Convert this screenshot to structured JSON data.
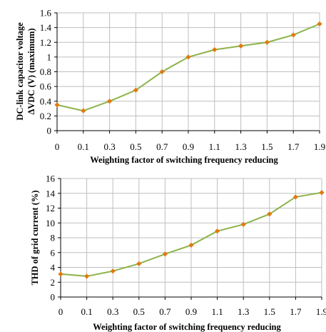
{
  "chart_data": [
    {
      "type": "line",
      "xlabel": "Weighting factor of switching frequency reducing",
      "ylabel_lines": [
        "DC-link capacitor voltage",
        "ΔVDC (V) (maximum)"
      ],
      "categories": [
        "0",
        "0.1",
        "0.3",
        "0.5",
        "0.7",
        "0.9",
        "1.1",
        "1.3",
        "1.5",
        "1.7",
        "1.9"
      ],
      "ylim": [
        0,
        1.6
      ],
      "yticks": [
        0,
        0.2,
        0.4,
        0.6,
        0.8,
        1,
        1.2,
        1.4,
        1.6
      ],
      "ytick_labels": [
        "0",
        "0.2",
        "0.4",
        "0.6",
        "0.8",
        "1",
        "1.2",
        "1.4",
        "1.6"
      ],
      "grid": true,
      "series": [
        {
          "values": [
            0.35,
            0.27,
            0.4,
            0.55,
            0.8,
            1.0,
            1.1,
            1.15,
            1.2,
            1.3,
            1.45
          ]
        }
      ],
      "colors": {
        "line": "#8db34a",
        "marker": "#e07a10"
      }
    },
    {
      "type": "line",
      "xlabel": "Weighting factor of switching frequency reducing",
      "ylabel_lines": [
        "THD of grid current (%)"
      ],
      "categories": [
        "0",
        "0.1",
        "0.3",
        "0.5",
        "0.7",
        "0.9",
        "1.1",
        "1.3",
        "1.5",
        "1.7",
        "1.9"
      ],
      "ylim": [
        0,
        16
      ],
      "yticks": [
        0,
        2,
        4,
        6,
        8,
        10,
        12,
        14,
        16
      ],
      "ytick_labels": [
        "0",
        "2",
        "4",
        "6",
        "8",
        "10",
        "12",
        "14",
        "16"
      ],
      "grid": true,
      "series": [
        {
          "values": [
            3.1,
            2.8,
            3.5,
            4.5,
            5.8,
            7.0,
            8.9,
            9.8,
            11.2,
            13.5,
            14.1
          ]
        }
      ],
      "colors": {
        "line": "#8db34a",
        "marker": "#e07a10"
      }
    }
  ]
}
